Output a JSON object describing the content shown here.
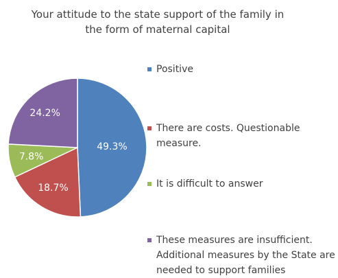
{
  "chart_data": {
    "type": "pie",
    "title": "Your attitude to the state support of the family in the form of maternal capital",
    "categories": [
      "Positive",
      "There are costs. Questionable measure.",
      "It is difficult to answer",
      "These measures are insufficient. Additional measures by the State are needed to support families"
    ],
    "values": [
      49.3,
      18.7,
      7.8,
      24.2
    ],
    "value_labels": [
      "49.3%",
      "18.7%",
      "7.8%",
      "24.2%"
    ],
    "colors": [
      "#4f81bd",
      "#c0504d",
      "#9bbb59",
      "#8064a2"
    ],
    "legend": "right"
  }
}
